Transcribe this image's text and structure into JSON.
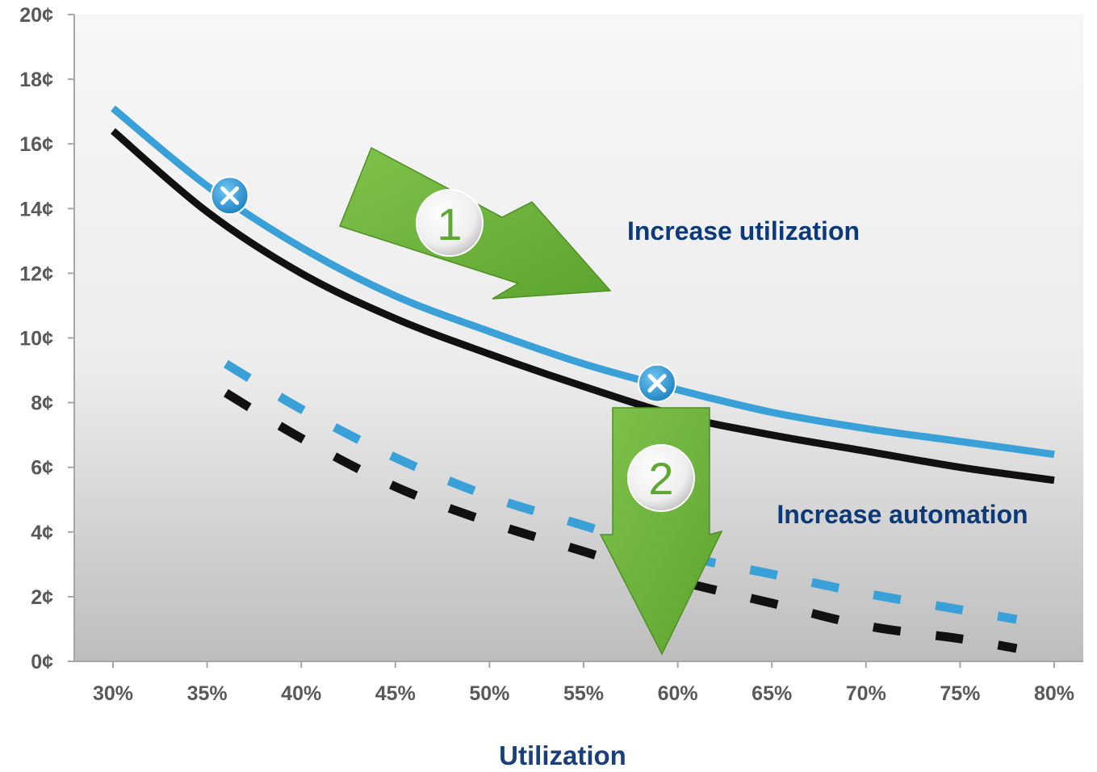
{
  "chart_data": {
    "type": "line",
    "title": "",
    "xlabel": "Utilization",
    "ylabel": "",
    "xlim": [
      28,
      80
    ],
    "ylim": [
      0,
      20
    ],
    "x_tick_values": [
      30,
      35,
      40,
      45,
      50,
      55,
      60,
      65,
      70,
      75,
      80
    ],
    "x_ticks": [
      "30%",
      "35%",
      "40%",
      "45%",
      "50%",
      "55%",
      "60%",
      "65%",
      "70%",
      "75%",
      "80%"
    ],
    "y_tick_values": [
      0,
      2,
      4,
      6,
      8,
      10,
      12,
      14,
      16,
      18,
      20
    ],
    "y_ticks": [
      "0¢",
      "2¢",
      "4¢",
      "6¢",
      "8¢",
      "10¢",
      "12¢",
      "14¢",
      "16¢",
      "18¢",
      "20¢"
    ],
    "grid": false,
    "series": [
      {
        "style": "solid",
        "color": "#3aa0d8",
        "x": [
          30,
          35,
          40,
          45,
          50,
          55,
          60,
          65,
          70,
          75,
          80
        ],
        "y": [
          17.1,
          14.7,
          12.8,
          11.3,
          10.2,
          9.2,
          8.4,
          7.7,
          7.2,
          6.8,
          6.4
        ]
      },
      {
        "style": "solid",
        "color": "#111111",
        "x": [
          30,
          35,
          40,
          45,
          50,
          55,
          60,
          65,
          70,
          75,
          80
        ],
        "y": [
          16.4,
          13.9,
          12.0,
          10.6,
          9.5,
          8.5,
          7.6,
          7.0,
          6.5,
          6.0,
          5.6
        ]
      },
      {
        "style": "dashed",
        "color": "#3aa0d8",
        "x": [
          36,
          40,
          45,
          50,
          55,
          60,
          65,
          70,
          75,
          78
        ],
        "y": [
          9.2,
          7.8,
          6.3,
          5.1,
          4.2,
          3.3,
          2.7,
          2.1,
          1.6,
          1.3
        ]
      },
      {
        "style": "dashed",
        "color": "#111111",
        "x": [
          36,
          40,
          45,
          50,
          55,
          60,
          65,
          70,
          75,
          78
        ],
        "y": [
          8.3,
          6.9,
          5.4,
          4.3,
          3.4,
          2.5,
          1.8,
          1.1,
          0.7,
          0.4
        ]
      }
    ],
    "markers": [
      {
        "x": 36.2,
        "y": 14.4,
        "symbol": "x-circle"
      },
      {
        "x": 58.9,
        "y": 8.6,
        "symbol": "x-circle"
      }
    ],
    "annotations": [
      {
        "number": "1",
        "text": "Increase utilization"
      },
      {
        "number": "2",
        "text": "Increase automation"
      }
    ],
    "colors": {
      "arrow": "#6db33f",
      "badge": "#5ea832",
      "annotation_text": "#0c3a78",
      "axis_title": "#1a3f7a"
    }
  }
}
